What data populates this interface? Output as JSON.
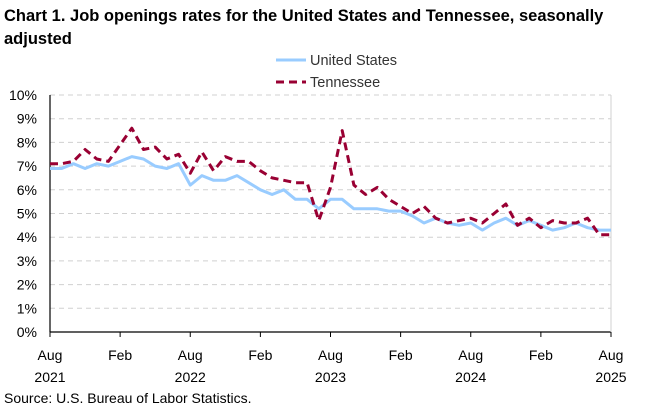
{
  "chart_data": {
    "type": "line",
    "title": "Chart 1. Job openings rates for the United States and Tennessee, seasonally adjusted",
    "source": "Source: U.S. Bureau of Labor Statistics.",
    "xlabel": "",
    "ylabel": "",
    "ylim": [
      0,
      10
    ],
    "y_ticks": [
      "0%",
      "1%",
      "2%",
      "3%",
      "4%",
      "5%",
      "6%",
      "7%",
      "8%",
      "9%",
      "10%"
    ],
    "x_ticks": [
      {
        "month": "Aug",
        "year": "2021"
      },
      {
        "month": "Feb",
        "year": ""
      },
      {
        "month": "Aug",
        "year": "2022"
      },
      {
        "month": "Feb",
        "year": ""
      },
      {
        "month": "Aug",
        "year": "2023"
      },
      {
        "month": "Feb",
        "year": ""
      },
      {
        "month": "Aug",
        "year": "2024"
      },
      {
        "month": "Feb",
        "year": ""
      },
      {
        "month": "Aug",
        "year": "2025"
      }
    ],
    "x_range": [
      "Aug 2021",
      "Aug 2025"
    ],
    "grid": "horizontal dashed",
    "legend": "top",
    "series": [
      {
        "name": "United States",
        "color": "#99ccff",
        "style": "solid",
        "values": [
          6.9,
          6.9,
          7.1,
          6.9,
          7.1,
          7.0,
          7.2,
          7.4,
          7.3,
          7.0,
          6.9,
          7.1,
          6.2,
          6.6,
          6.4,
          6.4,
          6.6,
          6.3,
          6.0,
          5.8,
          6.0,
          5.6,
          5.6,
          5.2,
          5.6,
          5.6,
          5.2,
          5.2,
          5.2,
          5.1,
          5.1,
          4.9,
          4.6,
          4.8,
          4.6,
          4.5,
          4.6,
          4.3,
          4.6,
          4.8,
          4.5,
          4.7,
          4.5,
          4.3,
          4.4,
          4.6,
          4.4,
          4.3,
          4.3
        ]
      },
      {
        "name": "Tennessee",
        "color": "#990033",
        "style": "dashed",
        "values": [
          7.1,
          7.1,
          7.2,
          7.7,
          7.3,
          7.2,
          7.9,
          8.6,
          7.7,
          7.8,
          7.3,
          7.5,
          6.7,
          7.6,
          6.8,
          7.4,
          7.2,
          7.2,
          6.8,
          6.5,
          6.4,
          6.3,
          6.3,
          4.7,
          6.1,
          8.5,
          6.2,
          5.8,
          6.1,
          5.6,
          5.3,
          5.0,
          5.3,
          4.8,
          4.6,
          4.7,
          4.8,
          4.6,
          5.0,
          5.4,
          4.5,
          4.8,
          4.4,
          4.7,
          4.6,
          4.6,
          4.8,
          4.1,
          4.1
        ]
      }
    ]
  }
}
